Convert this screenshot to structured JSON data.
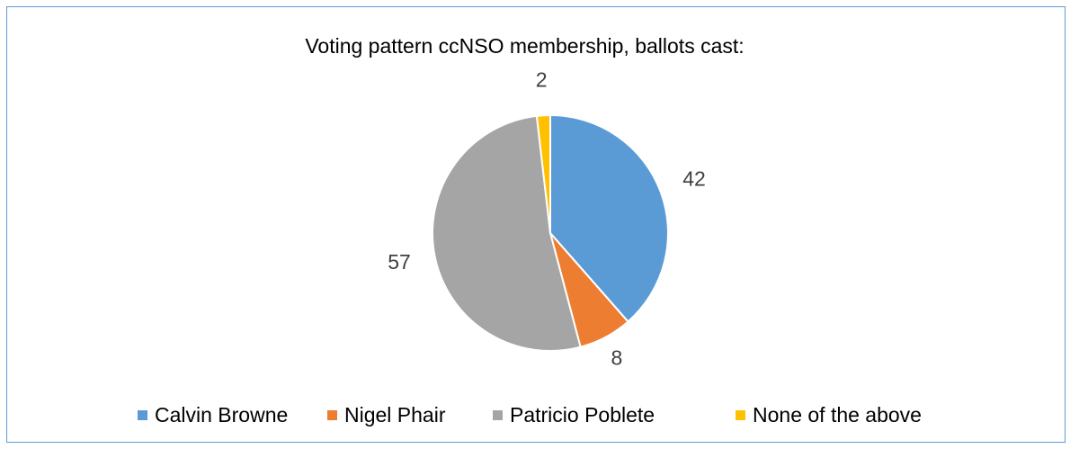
{
  "chart_data": {
    "type": "pie",
    "title": "Voting pattern ccNSO membership, ballots cast:",
    "categories": [
      "Calvin Browne",
      "Nigel Phair",
      "Patricio Poblete",
      "None of the above"
    ],
    "values": [
      42,
      8,
      57,
      2
    ],
    "colors": [
      "#5b9bd5",
      "#ed7d31",
      "#a5a5a5",
      "#ffc000"
    ],
    "data_labels": [
      "42",
      "8",
      "57",
      "2"
    ],
    "legend_position": "bottom",
    "start_angle_deg": 0,
    "direction": "clockwise"
  }
}
